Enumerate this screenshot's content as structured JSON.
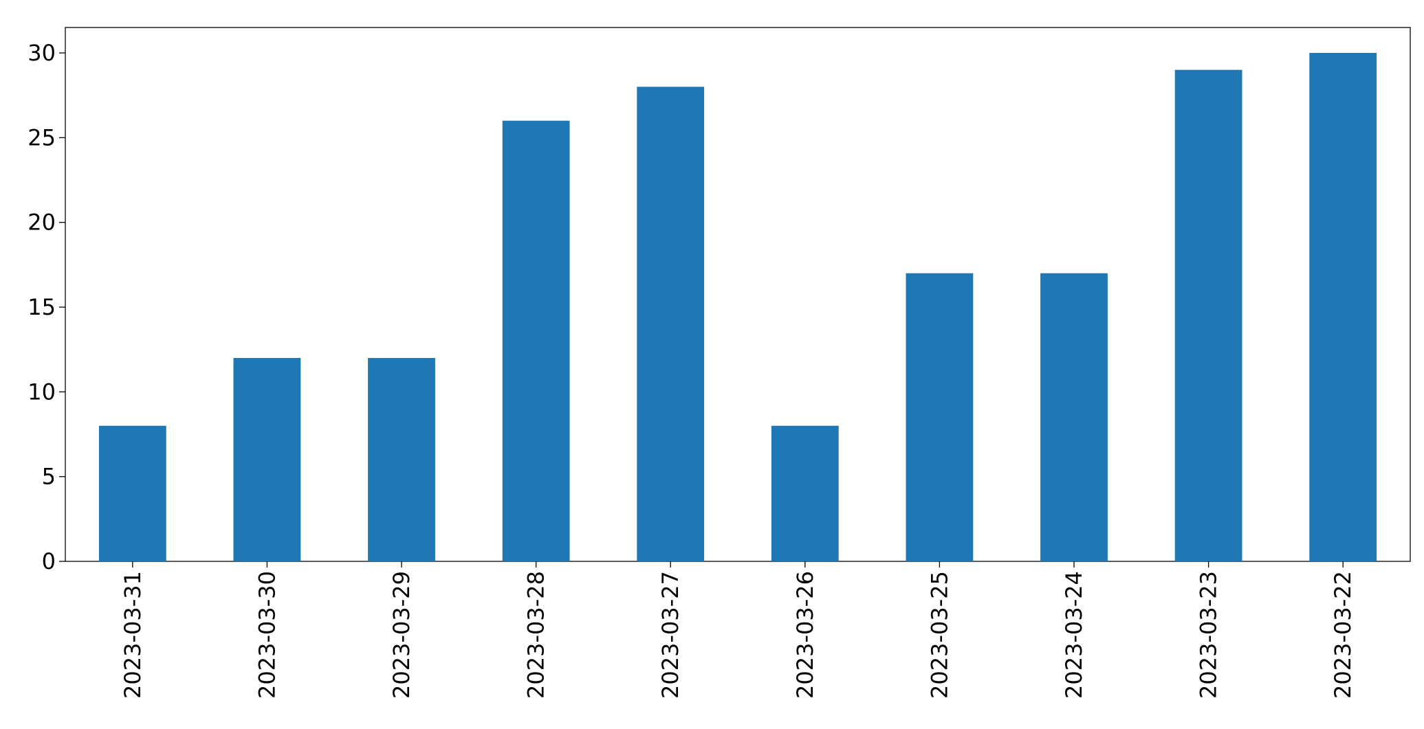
{
  "chart_data": {
    "type": "bar",
    "categories": [
      "2023-03-31",
      "2023-03-30",
      "2023-03-29",
      "2023-03-28",
      "2023-03-27",
      "2023-03-26",
      "2023-03-25",
      "2023-03-24",
      "2023-03-23",
      "2023-03-22"
    ],
    "values": [
      8,
      12,
      12,
      26,
      28,
      8,
      17,
      17,
      29,
      30
    ],
    "color": "#1f77b4",
    "ylim": [
      0,
      31.5
    ],
    "yticks": [
      0,
      5,
      10,
      15,
      20,
      25,
      30
    ],
    "grid": false
  }
}
